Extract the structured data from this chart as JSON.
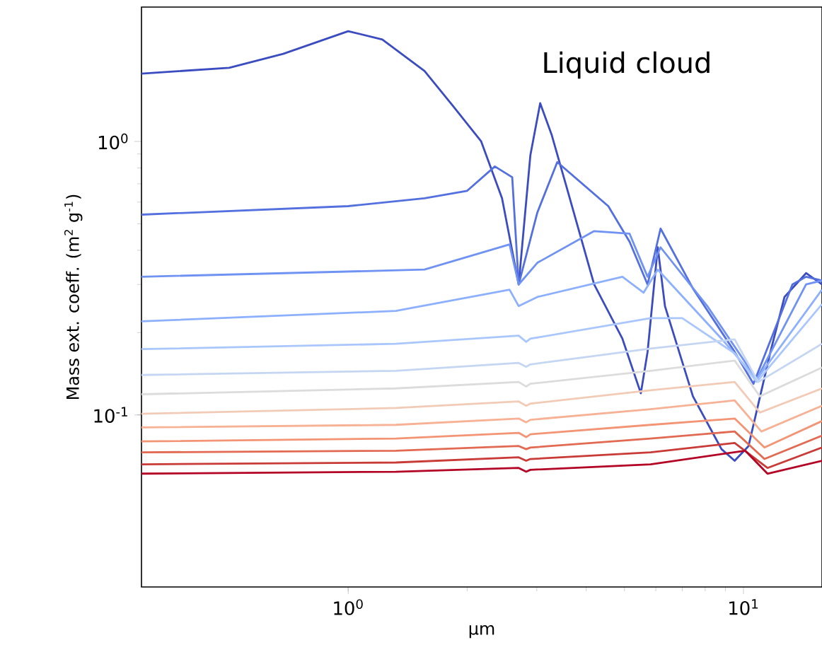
{
  "chart_data": {
    "type": "line",
    "xlabel": "μm",
    "ylabel": "Mass ext. coeff. (m$^{2}$ g$^{-1}$)",
    "annotations": [
      "Liquid cloud"
    ],
    "log": "xy",
    "marker": "none",
    "line_style": "solid",
    "xlim": [
      0.3,
      15.8
    ],
    "ylim": [
      0.0235,
      3.1
    ],
    "xticks": [
      {
        "value": 1,
        "label": "10$^{0}$"
      },
      {
        "value": 10,
        "label": "10$^{1}$"
      }
    ],
    "yticks": [
      {
        "value": 0.1,
        "label": "10$^{-1}$"
      },
      {
        "value": 1,
        "label": "10$^{0}$"
      }
    ],
    "series": [
      {
        "color": "#3b4cc0",
        "x": [
          0.3,
          0.5,
          0.685,
          1.0,
          1.22,
          1.56,
          1.84,
          2.17,
          2.45,
          2.7,
          2.89,
          3.06,
          3.27,
          3.55,
          4.19,
          4.94,
          5.5,
          5.72,
          6.07,
          6.33,
          7.45,
          8.8,
          9.5,
          10.3,
          11.7,
          12.7,
          14.4,
          15.8
        ],
        "values": [
          1.77,
          1.86,
          2.09,
          2.53,
          2.36,
          1.81,
          1.35,
          1.0,
          0.62,
          0.3,
          0.89,
          1.38,
          1.06,
          0.7,
          0.3,
          0.19,
          0.12,
          0.17,
          0.41,
          0.25,
          0.117,
          0.075,
          0.068,
          0.077,
          0.17,
          0.27,
          0.33,
          0.3
        ]
      },
      {
        "color": "#5470de",
        "x": [
          0.3,
          1.0,
          1.56,
          2.0,
          2.35,
          2.6,
          2.7,
          3.01,
          3.38,
          4.55,
          5.15,
          5.72,
          6.17,
          7.45,
          9.5,
          10.6,
          13.3,
          14.4,
          15.8
        ],
        "values": [
          0.54,
          0.58,
          0.62,
          0.66,
          0.81,
          0.74,
          0.3,
          0.55,
          0.84,
          0.58,
          0.43,
          0.3,
          0.48,
          0.29,
          0.17,
          0.13,
          0.3,
          0.32,
          0.31
        ]
      },
      {
        "color": "#6f92f3",
        "x": [
          0.3,
          1.56,
          2.56,
          2.7,
          3.01,
          4.19,
          5.15,
          5.72,
          6.17,
          8.1,
          10.8,
          14.4,
          15.8
        ],
        "values": [
          0.32,
          0.34,
          0.42,
          0.3,
          0.36,
          0.47,
          0.46,
          0.32,
          0.41,
          0.25,
          0.135,
          0.3,
          0.31
        ]
      },
      {
        "color": "#8db0fe",
        "x": [
          0.3,
          1.32,
          2.56,
          2.7,
          3.01,
          4.94,
          5.59,
          6.07,
          8.8,
          10.8,
          15.8
        ],
        "values": [
          0.22,
          0.24,
          0.287,
          0.25,
          0.27,
          0.32,
          0.28,
          0.34,
          0.19,
          0.135,
          0.287
        ]
      },
      {
        "color": "#aac7fd",
        "x": [
          0.3,
          1.32,
          2.7,
          2.82,
          2.89,
          5.82,
          7.0,
          9.5,
          10.8,
          15.8
        ],
        "values": [
          0.174,
          0.182,
          0.195,
          0.185,
          0.19,
          0.226,
          0.226,
          0.168,
          0.132,
          0.254
        ]
      },
      {
        "color": "#c5d6f2",
        "x": [
          0.3,
          1.32,
          2.7,
          2.82,
          2.89,
          5.82,
          9.5,
          10.9,
          15.8
        ],
        "values": [
          0.14,
          0.145,
          0.155,
          0.15,
          0.153,
          0.175,
          0.189,
          0.132,
          0.182
        ]
      },
      {
        "color": "#dddcdc",
        "x": [
          0.3,
          1.32,
          2.7,
          2.82,
          2.89,
          5.82,
          9.5,
          11.0,
          15.8
        ],
        "values": [
          0.119,
          0.125,
          0.132,
          0.127,
          0.13,
          0.145,
          0.158,
          0.117,
          0.149
        ]
      },
      {
        "color": "#f2cbb7",
        "x": [
          0.3,
          1.32,
          2.7,
          2.82,
          2.89,
          5.82,
          9.5,
          11.0,
          15.8
        ],
        "values": [
          0.101,
          0.106,
          0.112,
          0.108,
          0.11,
          0.123,
          0.132,
          0.102,
          0.125
        ]
      },
      {
        "color": "#f7b194",
        "x": [
          0.3,
          1.32,
          2.7,
          2.82,
          2.89,
          5.82,
          9.5,
          11.1,
          15.8
        ],
        "values": [
          0.09,
          0.092,
          0.097,
          0.094,
          0.096,
          0.105,
          0.113,
          0.087,
          0.108
        ]
      },
      {
        "color": "#f39475",
        "x": [
          0.3,
          1.32,
          2.7,
          2.82,
          2.89,
          5.82,
          9.5,
          11.3,
          15.8
        ],
        "values": [
          0.08,
          0.082,
          0.086,
          0.083,
          0.085,
          0.092,
          0.097,
          0.076,
          0.095
        ]
      },
      {
        "color": "#e26952",
        "x": [
          0.3,
          1.32,
          2.7,
          2.82,
          2.89,
          5.82,
          9.5,
          11.3,
          15.8
        ],
        "values": [
          0.073,
          0.074,
          0.077,
          0.075,
          0.076,
          0.082,
          0.087,
          0.069,
          0.084
        ]
      },
      {
        "color": "#c93b37",
        "x": [
          0.3,
          1.32,
          2.7,
          2.82,
          2.89,
          5.82,
          9.5,
          11.5,
          15.8
        ],
        "values": [
          0.066,
          0.067,
          0.07,
          0.068,
          0.069,
          0.073,
          0.079,
          0.064,
          0.076
        ]
      },
      {
        "color": "#b40426",
        "x": [
          0.3,
          1.32,
          2.7,
          2.82,
          2.89,
          5.82,
          10.1,
          11.5,
          15.8
        ],
        "values": [
          0.061,
          0.062,
          0.064,
          0.062,
          0.063,
          0.066,
          0.074,
          0.061,
          0.068
        ]
      }
    ]
  }
}
